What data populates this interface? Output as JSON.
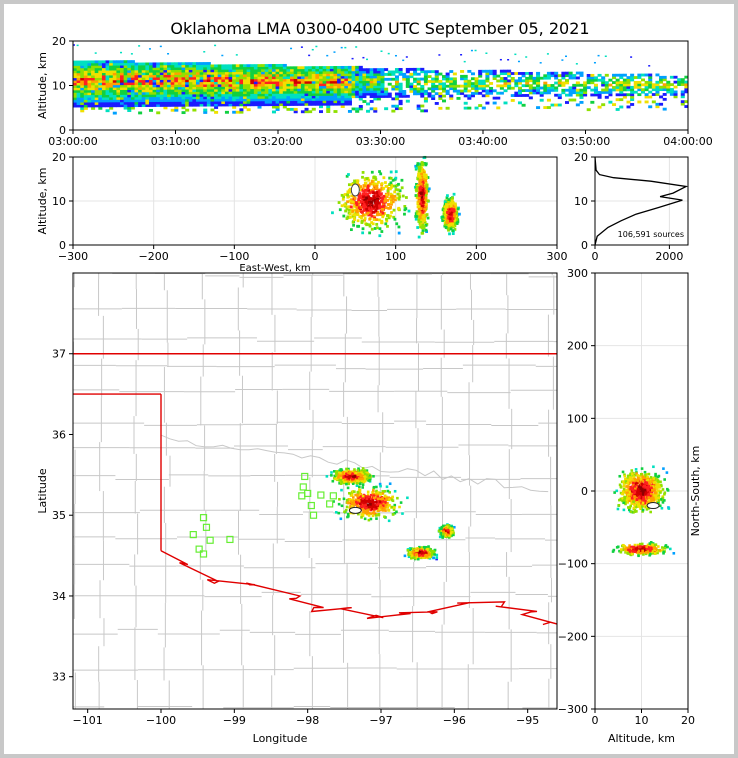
{
  "title": "Oklahoma LMA 0300-0400 UTC September 05, 2021",
  "chart_data": [
    {
      "id": "time_height",
      "type": "heatmap",
      "ylabel": "Altitude, km",
      "ylim": [
        0,
        20
      ],
      "yticks": [
        "0",
        "10",
        "20"
      ],
      "xticks": [
        "03:00:00",
        "03:10:00",
        "03:20:00",
        "03:30:00",
        "03:40:00",
        "03:50:00",
        "04:00:00"
      ],
      "xlim_minutes": [
        0,
        60
      ]
    },
    {
      "id": "ew_altitude",
      "type": "heatmap",
      "xlabel": "East-West, km",
      "ylabel": "Altitude, km",
      "xlim": [
        -300,
        300
      ],
      "ylim": [
        0,
        20
      ],
      "xticks": [
        "−300",
        "−200",
        "−100",
        "0",
        "100",
        "200",
        "300"
      ],
      "yticks": [
        "0",
        "10",
        "20"
      ],
      "clusters": [
        {
          "x_center": 70,
          "x_halfwidth": 45,
          "z_center": 10,
          "z_halfheight": 7
        },
        {
          "x_center": 133,
          "x_halfwidth": 8,
          "z_center": 11,
          "z_halfheight": 9
        },
        {
          "x_center": 168,
          "x_halfwidth": 10,
          "z_center": 7,
          "z_halfheight": 4
        }
      ]
    },
    {
      "id": "altitude_histogram",
      "type": "line",
      "xlim": [
        0,
        2500
      ],
      "ylim": [
        0,
        20
      ],
      "xticks": [
        "0",
        "2000"
      ],
      "yticks": [
        "0",
        "10",
        "20"
      ],
      "annotation": "106,591 sources",
      "points": [
        [
          0,
          0
        ],
        [
          60,
          2
        ],
        [
          350,
          4
        ],
        [
          700,
          5.5
        ],
        [
          1100,
          7
        ],
        [
          1700,
          8.5
        ],
        [
          2350,
          10.2
        ],
        [
          1750,
          11
        ],
        [
          2100,
          11.8
        ],
        [
          2450,
          13.3
        ],
        [
          1500,
          14.5
        ],
        [
          500,
          15.3
        ],
        [
          120,
          16
        ],
        [
          30,
          17
        ],
        [
          0,
          20
        ]
      ]
    },
    {
      "id": "plan_view",
      "type": "scatter",
      "xlabel": "Longitude",
      "ylabel": "Latitude",
      "xlim": [
        -101.2,
        -94.6
      ],
      "ylim": [
        32.6,
        38
      ],
      "xticks": [
        "−101",
        "−100",
        "−99",
        "−98",
        "−97",
        "−96",
        "−95"
      ],
      "yticks": [
        "33",
        "34",
        "35",
        "36",
        "37"
      ],
      "stations": [
        [
          -98.04,
          35.48
        ],
        [
          -98.06,
          35.35
        ],
        [
          -98.08,
          35.24
        ],
        [
          -98.0,
          35.27
        ],
        [
          -97.95,
          35.12
        ],
        [
          -97.92,
          35.0
        ],
        [
          -97.82,
          35.25
        ],
        [
          -97.7,
          35.14
        ],
        [
          -97.65,
          35.24
        ],
        [
          -99.42,
          34.97
        ],
        [
          -99.38,
          34.85
        ],
        [
          -99.56,
          34.76
        ],
        [
          -99.33,
          34.69
        ],
        [
          -99.48,
          34.58
        ],
        [
          -99.42,
          34.52
        ],
        [
          -99.06,
          34.7
        ]
      ],
      "storms": [
        {
          "lon": -97.4,
          "lat": 35.48,
          "rlon": 0.3,
          "rlat": 0.1
        },
        {
          "lon": -97.15,
          "lat": 35.15,
          "rlon": 0.45,
          "rlat": 0.22
        },
        {
          "lon": -96.45,
          "lat": 34.53,
          "rlon": 0.2,
          "rlat": 0.08
        },
        {
          "lon": -96.1,
          "lat": 34.8,
          "rlon": 0.1,
          "rlat": 0.08
        }
      ]
    },
    {
      "id": "ns_altitude",
      "type": "heatmap",
      "xlabel": "Altitude, km",
      "ylabel": "North-South, km",
      "xlim": [
        0,
        20
      ],
      "ylim": [
        -300,
        300
      ],
      "xticks": [
        "0",
        "10",
        "20"
      ],
      "yticks": [
        "−300",
        "−200",
        "−100",
        "0",
        "100",
        "200",
        "300"
      ]
    }
  ]
}
